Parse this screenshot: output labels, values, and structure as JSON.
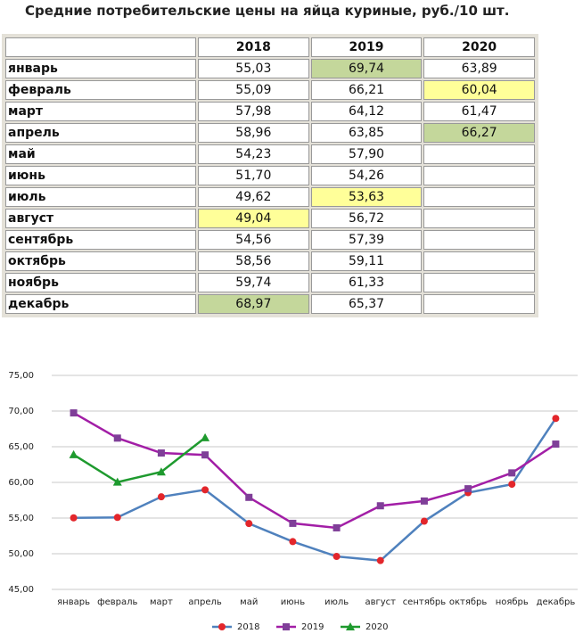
{
  "table": {
    "title": "Средние потребительские цены на яйца куриные, руб./10 шт.",
    "header": [
      "",
      "2018",
      "2019",
      "2020"
    ],
    "rows": [
      [
        "январь",
        "55,03",
        "69,74",
        "63,89"
      ],
      [
        "февраль",
        "55,09",
        "66,21",
        "60,04"
      ],
      [
        "март",
        "57,98",
        "64,12",
        "61,47"
      ],
      [
        "апрель",
        "58,96",
        "63,85",
        "66,27"
      ],
      [
        "май",
        "54,23",
        "57,90",
        ""
      ],
      [
        "июнь",
        "51,70",
        "54,26",
        ""
      ],
      [
        "июль",
        "49,62",
        "53,63",
        ""
      ],
      [
        "август",
        "49,04",
        "56,72",
        ""
      ],
      [
        "сентябрь",
        "54,56",
        "57,39",
        ""
      ],
      [
        "октябрь",
        "58,56",
        "59,11",
        ""
      ],
      [
        "ноябрь",
        "59,74",
        "61,33",
        ""
      ],
      [
        "декабрь",
        "68,97",
        "65,37",
        ""
      ]
    ],
    "highlights": [
      {
        "row": 0,
        "col": 2,
        "color": "#c4d79b"
      },
      {
        "row": 1,
        "col": 3,
        "color": "#ffff99"
      },
      {
        "row": 3,
        "col": 3,
        "color": "#c4d79b"
      },
      {
        "row": 6,
        "col": 2,
        "color": "#ffff99"
      },
      {
        "row": 7,
        "col": 1,
        "color": "#ffff99"
      },
      {
        "row": 11,
        "col": 1,
        "color": "#c4d79b"
      }
    ]
  },
  "chart_data": {
    "type": "line",
    "categories": [
      "январь",
      "февраль",
      "март",
      "апрель",
      "май",
      "июнь",
      "июль",
      "август",
      "сентябрь",
      "октябрь",
      "ноябрь",
      "декабрь"
    ],
    "series": [
      {
        "name": "2018",
        "color": "#4f81bd",
        "marker": "circle",
        "marker_color": "#e3262b",
        "values": [
          55.03,
          55.09,
          57.98,
          58.96,
          54.23,
          51.7,
          49.62,
          49.04,
          54.56,
          58.56,
          59.74,
          68.97
        ]
      },
      {
        "name": "2019",
        "color": "#a21ea6",
        "marker": "square",
        "marker_color": "#7f3f98",
        "values": [
          69.74,
          66.21,
          64.12,
          63.85,
          57.9,
          54.26,
          53.63,
          56.72,
          57.39,
          59.11,
          61.33,
          65.37
        ]
      },
      {
        "name": "2020",
        "color": "#1e9a2e",
        "marker": "triangle",
        "marker_color": "#1e9a2e",
        "values": [
          63.89,
          60.04,
          61.47,
          66.27,
          null,
          null,
          null,
          null,
          null,
          null,
          null,
          null
        ]
      }
    ],
    "ylim": [
      45,
      75
    ],
    "yticks": [
      {
        "value": 45,
        "label": "45,00"
      },
      {
        "value": 50,
        "label": "50,00"
      },
      {
        "value": 55,
        "label": "55,00"
      },
      {
        "value": 60,
        "label": "60,00"
      },
      {
        "value": 65,
        "label": "65,00"
      },
      {
        "value": 70,
        "label": "70,00"
      },
      {
        "value": 75,
        "label": "75,00"
      }
    ],
    "grid": true,
    "legend": "bottom"
  }
}
